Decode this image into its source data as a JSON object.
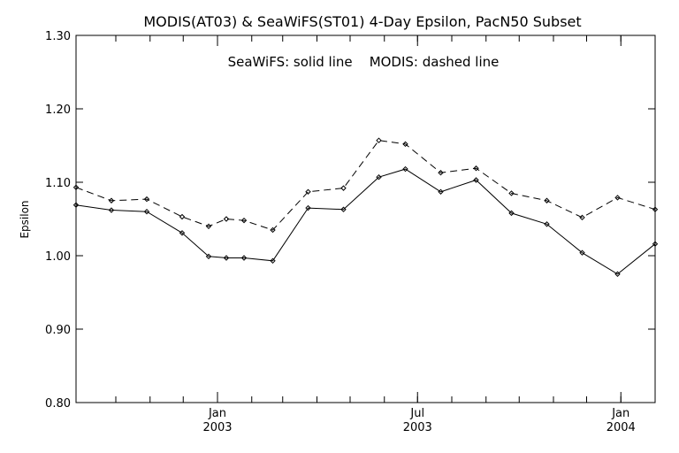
{
  "chart_data": {
    "type": "line",
    "title": "MODIS(AT03) & SeaWiFS(ST01) 4-Day Epsilon, PacN50 Subset",
    "annotation": "SeaWiFS: solid line    MODIS: dashed line",
    "ylabel": "Epsilon",
    "xlabel": "",
    "ylim": [
      0.8,
      1.3
    ],
    "yticks": [
      "0.80",
      "0.90",
      "1.00",
      "1.10",
      "1.20",
      "1.30"
    ],
    "xlim": [
      "2002-08-26",
      "2004-02-01"
    ],
    "xtick_labels": [
      {
        "month": "Jan",
        "year": "2003",
        "date": "2003-01-01"
      },
      {
        "month": "Jul",
        "year": "2003",
        "date": "2003-07-01"
      },
      {
        "month": "Jan",
        "year": "2004",
        "date": "2004-01-01"
      }
    ],
    "x_minor_ticks": [
      "2002-10-01",
      "2002-11-01",
      "2002-12-01",
      "2003-01-01",
      "2003-02-01",
      "2003-03-01",
      "2003-04-01",
      "2003-05-01",
      "2003-06-01",
      "2003-07-01",
      "2003-08-01",
      "2003-09-01",
      "2003-10-01",
      "2003-11-01",
      "2003-12-01",
      "2004-01-01"
    ],
    "grid": false,
    "series": [
      {
        "style": "solid",
        "x": [
          "2002-08-26",
          "2002-09-27",
          "2002-10-29",
          "2002-11-30",
          "2002-12-24",
          "2003-01-09",
          "2003-01-25",
          "2003-02-20",
          "2003-03-24",
          "2003-04-25",
          "2003-05-27",
          "2003-06-20",
          "2003-07-22",
          "2003-08-23",
          "2003-09-24",
          "2003-10-26",
          "2003-11-27",
          "2003-12-29",
          "2004-02-01"
        ],
        "values": [
          1.069,
          1.062,
          1.06,
          1.031,
          0.999,
          0.997,
          0.997,
          0.993,
          1.065,
          1.063,
          1.107,
          1.118,
          1.087,
          1.103,
          1.058,
          1.043,
          1.004,
          0.975,
          1.016
        ]
      },
      {
        "style": "dashed",
        "x": [
          "2002-08-26",
          "2002-09-27",
          "2002-10-29",
          "2002-11-30",
          "2002-12-24",
          "2003-01-09",
          "2003-01-25",
          "2003-02-20",
          "2003-03-24",
          "2003-04-25",
          "2003-05-27",
          "2003-06-20",
          "2003-07-22",
          "2003-08-23",
          "2003-09-24",
          "2003-10-26",
          "2003-11-27",
          "2003-12-29",
          "2004-02-01"
        ],
        "values": [
          1.093,
          1.075,
          1.077,
          1.053,
          1.04,
          1.05,
          1.048,
          1.035,
          1.087,
          1.092,
          1.157,
          1.152,
          1.113,
          1.119,
          1.085,
          1.075,
          1.052,
          1.079,
          1.063
        ]
      }
    ]
  }
}
